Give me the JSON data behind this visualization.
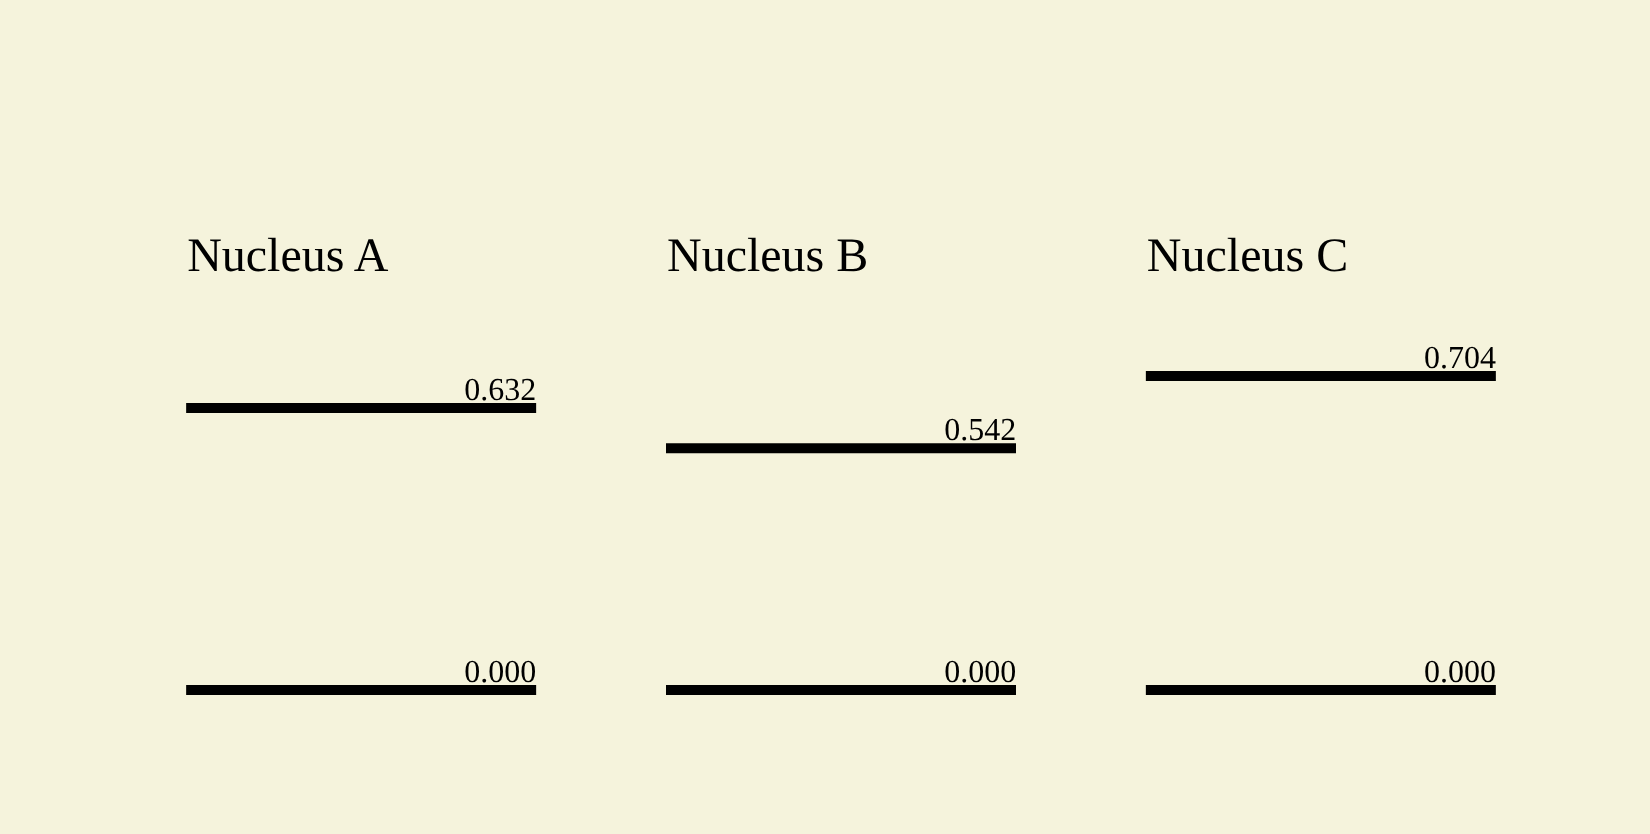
{
  "chart_data": {
    "type": "other",
    "categories": [
      "Nucleus A",
      "Nucleus B",
      "Nucleus C"
    ],
    "series": [
      {
        "color": "#000000",
        "values": [
          0,
          0,
          0
        ],
        "value_labels": [
          "0.000",
          "0.000",
          "0.000"
        ]
      },
      {
        "color": "#000000",
        "values": [
          0.632,
          0.542,
          0.704
        ],
        "value_labels": [
          "0.632",
          "0.542",
          "0.704"
        ]
      }
    ]
  }
}
